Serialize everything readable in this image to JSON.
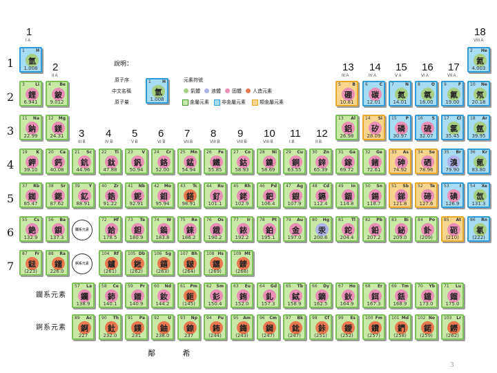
{
  "groups": [
    {
      "num": "1",
      "roman": "I A",
      "col": 1
    },
    {
      "num": "2",
      "roman": "II A",
      "col": 2
    },
    {
      "num": "3",
      "roman": "III B",
      "col": 3
    },
    {
      "num": "4",
      "roman": "IV B",
      "col": 4
    },
    {
      "num": "5",
      "roman": "V B",
      "col": 5
    },
    {
      "num": "6",
      "roman": "VI B",
      "col": 6
    },
    {
      "num": "7",
      "roman": "VII B",
      "col": 7
    },
    {
      "num": "8",
      "roman": "VIII B",
      "col": 8
    },
    {
      "num": "9",
      "roman": "VIII B",
      "col": 9
    },
    {
      "num": "10",
      "roman": "VIII B",
      "col": 10
    },
    {
      "num": "11",
      "roman": "I B",
      "col": 11
    },
    {
      "num": "12",
      "roman": "II B",
      "col": 12
    },
    {
      "num": "13",
      "roman": "III A",
      "col": 13
    },
    {
      "num": "14",
      "roman": "IV A",
      "col": 14
    },
    {
      "num": "15",
      "roman": "V A",
      "col": 15
    },
    {
      "num": "16",
      "roman": "VI A",
      "col": 16
    },
    {
      "num": "17",
      "roman": "VII A",
      "col": 17
    },
    {
      "num": "18",
      "roman": "VIII A",
      "col": 18
    }
  ],
  "periods": [
    "1",
    "2",
    "3",
    "4",
    "5",
    "6",
    "7"
  ],
  "legend": {
    "title": "說明：",
    "atomic_number": "原子序",
    "chinese_name": "中文名稱",
    "atomic_mass": "原子量",
    "symbol": "元素符號",
    "sample": {
      "num": "1",
      "sym": "H",
      "char": "氫",
      "mass": "1.008"
    },
    "states": [
      "氣體",
      "液體",
      "固體",
      "人造元素"
    ],
    "kinds": [
      "金屬元素",
      "非金屬元素",
      "類金屬元素"
    ]
  },
  "series_labels": {
    "lanthanides": "鑭系元素",
    "actinides": "錒系元素"
  },
  "placeholders": {
    "lanthanides": "鑭系元素",
    "actinides": "錒系元素"
  },
  "footer": "鄰 希",
  "page_number": "3",
  "elements": [
    {
      "n": "1",
      "s": "H",
      "c": "氫",
      "m": "1.008",
      "col": 1,
      "row": 1,
      "t": "nonmetal",
      "st": "gas"
    },
    {
      "n": "2",
      "s": "He",
      "c": "氦",
      "m": "4.003",
      "col": 18,
      "row": 1,
      "t": "nonmetal",
      "st": "gas"
    },
    {
      "n": "3",
      "s": "Li",
      "c": "鋰",
      "m": "6.941",
      "col": 1,
      "row": 2,
      "t": "metal",
      "st": "solid"
    },
    {
      "n": "4",
      "s": "Be",
      "c": "鈹",
      "m": "9.012",
      "col": 2,
      "row": 2,
      "t": "metal",
      "st": "solid"
    },
    {
      "n": "5",
      "s": "B",
      "c": "硼",
      "m": "10.81",
      "col": 13,
      "row": 2,
      "t": "metalloid",
      "st": "solid"
    },
    {
      "n": "6",
      "s": "C",
      "c": "碳",
      "m": "12.01",
      "col": 14,
      "row": 2,
      "t": "nonmetal",
      "st": "solid"
    },
    {
      "n": "7",
      "s": "N",
      "c": "氮",
      "m": "14.01",
      "col": 15,
      "row": 2,
      "t": "nonmetal",
      "st": "gas"
    },
    {
      "n": "8",
      "s": "O",
      "c": "氧",
      "m": "16.00",
      "col": 16,
      "row": 2,
      "t": "nonmetal",
      "st": "gas"
    },
    {
      "n": "9",
      "s": "F",
      "c": "氟",
      "m": "19.00",
      "col": 17,
      "row": 2,
      "t": "nonmetal",
      "st": "gas"
    },
    {
      "n": "10",
      "s": "Ne",
      "c": "氖",
      "m": "20.18",
      "col": 18,
      "row": 2,
      "t": "nonmetal",
      "st": "gas"
    },
    {
      "n": "11",
      "s": "Na",
      "c": "鈉",
      "m": "22.99",
      "col": 1,
      "row": 3,
      "t": "metal",
      "st": "solid"
    },
    {
      "n": "12",
      "s": "Mg",
      "c": "鎂",
      "m": "24.31",
      "col": 2,
      "row": 3,
      "t": "metal",
      "st": "solid"
    },
    {
      "n": "13",
      "s": "Al",
      "c": "鋁",
      "m": "26.98",
      "col": 13,
      "row": 3,
      "t": "metal",
      "st": "solid"
    },
    {
      "n": "14",
      "s": "Si",
      "c": "矽",
      "m": "28.09",
      "col": 14,
      "row": 3,
      "t": "metalloid",
      "st": "solid"
    },
    {
      "n": "15",
      "s": "P",
      "c": "磷",
      "m": "30.97",
      "col": 15,
      "row": 3,
      "t": "nonmetal",
      "st": "solid"
    },
    {
      "n": "16",
      "s": "S",
      "c": "硫",
      "m": "32.07",
      "col": 16,
      "row": 3,
      "t": "nonmetal",
      "st": "solid"
    },
    {
      "n": "17",
      "s": "Cl",
      "c": "氯",
      "m": "35.45",
      "col": 17,
      "row": 3,
      "t": "nonmetal",
      "st": "gas"
    },
    {
      "n": "18",
      "s": "Ar",
      "c": "氬",
      "m": "39.95",
      "col": 18,
      "row": 3,
      "t": "nonmetal",
      "st": "gas"
    },
    {
      "n": "19",
      "s": "K",
      "c": "鉀",
      "m": "39.10",
      "col": 1,
      "row": 4,
      "t": "metal",
      "st": "solid"
    },
    {
      "n": "20",
      "s": "Ca",
      "c": "鈣",
      "m": "40.08",
      "col": 2,
      "row": 4,
      "t": "metal",
      "st": "solid"
    },
    {
      "n": "21",
      "s": "Sc",
      "c": "鈧",
      "m": "44.96",
      "col": 3,
      "row": 4,
      "t": "metal",
      "st": "solid"
    },
    {
      "n": "22",
      "s": "Ti",
      "c": "鈦",
      "m": "47.88",
      "col": 4,
      "row": 4,
      "t": "metal",
      "st": "solid"
    },
    {
      "n": "23",
      "s": "V",
      "c": "釩",
      "m": "50.94",
      "col": 5,
      "row": 4,
      "t": "metal",
      "st": "solid"
    },
    {
      "n": "24",
      "s": "Cr",
      "c": "鉻",
      "m": "52.00",
      "col": 6,
      "row": 4,
      "t": "metal",
      "st": "solid"
    },
    {
      "n": "25",
      "s": "Mn",
      "c": "錳",
      "m": "54.94",
      "col": 7,
      "row": 4,
      "t": "metal",
      "st": "solid"
    },
    {
      "n": "26",
      "s": "Fe",
      "c": "鐵",
      "m": "55.85",
      "col": 8,
      "row": 4,
      "t": "metal",
      "st": "solid"
    },
    {
      "n": "27",
      "s": "Co",
      "c": "鈷",
      "m": "58.93",
      "col": 9,
      "row": 4,
      "t": "metal",
      "st": "solid"
    },
    {
      "n": "28",
      "s": "Ni",
      "c": "鎳",
      "m": "58.69",
      "col": 10,
      "row": 4,
      "t": "metal",
      "st": "solid"
    },
    {
      "n": "29",
      "s": "Cu",
      "c": "銅",
      "m": "63.55",
      "col": 11,
      "row": 4,
      "t": "metal",
      "st": "solid"
    },
    {
      "n": "30",
      "s": "Zn",
      "c": "鋅",
      "m": "65.39",
      "col": 12,
      "row": 4,
      "t": "metal",
      "st": "solid"
    },
    {
      "n": "31",
      "s": "Ga",
      "c": "鎵",
      "m": "69.72",
      "col": 13,
      "row": 4,
      "t": "metal",
      "st": "solid"
    },
    {
      "n": "32",
      "s": "Ge",
      "c": "鍺",
      "m": "72.61",
      "col": 14,
      "row": 4,
      "t": "metal",
      "st": "solid"
    },
    {
      "n": "33",
      "s": "As",
      "c": "砷",
      "m": "74.92",
      "col": 15,
      "row": 4,
      "t": "metalloid",
      "st": "solid"
    },
    {
      "n": "34",
      "s": "Se",
      "c": "硒",
      "m": "78.96",
      "col": 16,
      "row": 4,
      "t": "metalloid",
      "st": "solid"
    },
    {
      "n": "35",
      "s": "Br",
      "c": "溴",
      "m": "79.90",
      "col": 17,
      "row": 4,
      "t": "nonmetal",
      "st": "liquid"
    },
    {
      "n": "36",
      "s": "Kr",
      "c": "氪",
      "m": "83.80",
      "col": 18,
      "row": 4,
      "t": "nonmetal",
      "st": "gas"
    },
    {
      "n": "37",
      "s": "Rb",
      "c": "銣",
      "m": "85.47",
      "col": 1,
      "row": 5,
      "t": "metal",
      "st": "solid"
    },
    {
      "n": "38",
      "s": "Sr",
      "c": "鍶",
      "m": "87.62",
      "col": 2,
      "row": 5,
      "t": "metal",
      "st": "solid"
    },
    {
      "n": "39",
      "s": "Y",
      "c": "釔",
      "m": "88.91",
      "col": 3,
      "row": 5,
      "t": "metal",
      "st": "solid"
    },
    {
      "n": "40",
      "s": "Zr",
      "c": "鋯",
      "m": "91.22",
      "col": 4,
      "row": 5,
      "t": "metal",
      "st": "solid"
    },
    {
      "n": "41",
      "s": "Nb",
      "c": "鈮",
      "m": "92.91",
      "col": 5,
      "row": 5,
      "t": "metal",
      "st": "solid"
    },
    {
      "n": "42",
      "s": "Mo",
      "c": "鉬",
      "m": "95.94",
      "col": 6,
      "row": 5,
      "t": "metal",
      "st": "solid"
    },
    {
      "n": "43",
      "s": "Tc",
      "c": "鎝",
      "m": "98.91",
      "col": 7,
      "row": 5,
      "t": "metal",
      "st": "synth"
    },
    {
      "n": "44",
      "s": "Ru",
      "c": "釕",
      "m": "101.1",
      "col": 8,
      "row": 5,
      "t": "metal",
      "st": "solid"
    },
    {
      "n": "45",
      "s": "Rh",
      "c": "銠",
      "m": "102.9",
      "col": 9,
      "row": 5,
      "t": "metal",
      "st": "solid"
    },
    {
      "n": "46",
      "s": "Pd",
      "c": "鈀",
      "m": "106.4",
      "col": 10,
      "row": 5,
      "t": "metal",
      "st": "solid"
    },
    {
      "n": "47",
      "s": "Ag",
      "c": "銀",
      "m": "107.9",
      "col": 11,
      "row": 5,
      "t": "metal",
      "st": "solid"
    },
    {
      "n": "48",
      "s": "Cd",
      "c": "鎘",
      "m": "112.4",
      "col": 12,
      "row": 5,
      "t": "metal",
      "st": "solid"
    },
    {
      "n": "49",
      "s": "In",
      "c": "銦",
      "m": "114.8",
      "col": 13,
      "row": 5,
      "t": "metal",
      "st": "solid"
    },
    {
      "n": "50",
      "s": "Sn",
      "c": "錫",
      "m": "118.7",
      "col": 14,
      "row": 5,
      "t": "metal",
      "st": "solid"
    },
    {
      "n": "51",
      "s": "Sb",
      "c": "銻",
      "m": "121.8",
      "col": 15,
      "row": 5,
      "t": "metalloid",
      "st": "solid"
    },
    {
      "n": "52",
      "s": "Te",
      "c": "碲",
      "m": "127.6",
      "col": 16,
      "row": 5,
      "t": "metalloid",
      "st": "solid"
    },
    {
      "n": "53",
      "s": "I",
      "c": "碘",
      "m": "126.9",
      "col": 17,
      "row": 5,
      "t": "nonmetal",
      "st": "solid"
    },
    {
      "n": "54",
      "s": "Xe",
      "c": "氙",
      "m": "131.3",
      "col": 18,
      "row": 5,
      "t": "nonmetal",
      "st": "gas"
    },
    {
      "n": "55",
      "s": "Cs",
      "c": "銫",
      "m": "132.9",
      "col": 1,
      "row": 6,
      "t": "metal",
      "st": "solid"
    },
    {
      "n": "56",
      "s": "Ba",
      "c": "鋇",
      "m": "137.3",
      "col": 2,
      "row": 6,
      "t": "metal",
      "st": "solid"
    },
    {
      "n": "72",
      "s": "Hf",
      "c": "鉿",
      "m": "178.5",
      "col": 4,
      "row": 6,
      "t": "metal",
      "st": "solid"
    },
    {
      "n": "73",
      "s": "Ta",
      "c": "鉭",
      "m": "180.9",
      "col": 5,
      "row": 6,
      "t": "metal",
      "st": "solid"
    },
    {
      "n": "74",
      "s": "W",
      "c": "鎢",
      "m": "183.8",
      "col": 6,
      "row": 6,
      "t": "metal",
      "st": "solid"
    },
    {
      "n": "75",
      "s": "Re",
      "c": "錸",
      "m": "186.2",
      "col": 7,
      "row": 6,
      "t": "metal",
      "st": "solid"
    },
    {
      "n": "76",
      "s": "Os",
      "c": "鋨",
      "m": "190.2",
      "col": 8,
      "row": 6,
      "t": "metal",
      "st": "solid"
    },
    {
      "n": "77",
      "s": "Ir",
      "c": "銥",
      "m": "192.2",
      "col": 9,
      "row": 6,
      "t": "metal",
      "st": "solid"
    },
    {
      "n": "78",
      "s": "Pt",
      "c": "鉑",
      "m": "195.1",
      "col": 10,
      "row": 6,
      "t": "metal",
      "st": "solid"
    },
    {
      "n": "79",
      "s": "Au",
      "c": "金",
      "m": "197.0",
      "col": 11,
      "row": 6,
      "t": "metal",
      "st": "solid"
    },
    {
      "n": "80",
      "s": "Hg",
      "c": "汞",
      "m": "200.6",
      "col": 12,
      "row": 6,
      "t": "metal",
      "st": "liquid"
    },
    {
      "n": "81",
      "s": "Tl",
      "c": "鉈",
      "m": "204.4",
      "col": 13,
      "row": 6,
      "t": "metal",
      "st": "solid"
    },
    {
      "n": "82",
      "s": "Pb",
      "c": "鉛",
      "m": "207.2",
      "col": 14,
      "row": 6,
      "t": "metal",
      "st": "solid"
    },
    {
      "n": "83",
      "s": "Bi",
      "c": "鉍",
      "m": "209.0",
      "col": 15,
      "row": 6,
      "t": "metal",
      "st": "solid"
    },
    {
      "n": "84",
      "s": "Po",
      "c": "釙",
      "m": "(209)",
      "col": 16,
      "row": 6,
      "t": "metal",
      "st": "solid"
    },
    {
      "n": "85",
      "s": "At",
      "c": "砈",
      "m": "(210)",
      "col": 17,
      "row": 6,
      "t": "metalloid",
      "st": "solid"
    },
    {
      "n": "86",
      "s": "Rn",
      "c": "氡",
      "m": "(222)",
      "col": 18,
      "row": 6,
      "t": "nonmetal",
      "st": "gas"
    },
    {
      "n": "87",
      "s": "Fr",
      "c": "鍅",
      "m": "(223)",
      "col": 1,
      "row": 7,
      "t": "metal",
      "st": "synth"
    },
    {
      "n": "88",
      "s": "Ra",
      "c": "鐳",
      "m": "226.0",
      "col": 2,
      "row": 7,
      "t": "metal",
      "st": "synth"
    },
    {
      "n": "104",
      "s": "Rf",
      "c": "鑪",
      "m": "(261)",
      "col": 4,
      "row": 7,
      "t": "metal",
      "st": "synth"
    },
    {
      "n": "105",
      "s": "Db",
      "c": "𨧀",
      "m": "(262)",
      "col": 5,
      "row": 7,
      "t": "metal",
      "st": "synth"
    },
    {
      "n": "106",
      "s": "Sg",
      "c": "𨭎",
      "m": "(263)",
      "col": 6,
      "row": 7,
      "t": "metal",
      "st": "synth"
    },
    {
      "n": "107",
      "s": "Bh",
      "c": "𨨏",
      "m": "(264)",
      "col": 7,
      "row": 7,
      "t": "metal",
      "st": "synth"
    },
    {
      "n": "108",
      "s": "Hs",
      "c": "𨭆",
      "m": "(269)",
      "col": 8,
      "row": 7,
      "t": "metal",
      "st": "synth"
    },
    {
      "n": "109",
      "s": "Mt",
      "c": "䥑",
      "m": "(268)",
      "col": 9,
      "row": 7,
      "t": "metal",
      "st": "synth"
    },
    {
      "n": "57",
      "s": "La",
      "c": "鑭",
      "m": "138.9",
      "col": 3,
      "row": 8,
      "t": "metal",
      "st": "solid"
    },
    {
      "n": "58",
      "s": "Ce",
      "c": "鈰",
      "m": "140.1",
      "col": 4,
      "row": 8,
      "t": "metal",
      "st": "solid"
    },
    {
      "n": "59",
      "s": "Pr",
      "c": "鐠",
      "m": "140.9",
      "col": 5,
      "row": 8,
      "t": "metal",
      "st": "solid"
    },
    {
      "n": "60",
      "s": "Nd",
      "c": "釹",
      "m": "144.2",
      "col": 6,
      "row": 8,
      "t": "metal",
      "st": "solid"
    },
    {
      "n": "61",
      "s": "Pm",
      "c": "鉕",
      "m": "(145)",
      "col": 7,
      "row": 8,
      "t": "metal",
      "st": "synth"
    },
    {
      "n": "62",
      "s": "Sm",
      "c": "釤",
      "m": "150.4",
      "col": 8,
      "row": 8,
      "t": "metal",
      "st": "solid"
    },
    {
      "n": "63",
      "s": "Eu",
      "c": "銪",
      "m": "152.0",
      "col": 9,
      "row": 8,
      "t": "metal",
      "st": "solid"
    },
    {
      "n": "64",
      "s": "Gd",
      "c": "釓",
      "m": "157.3",
      "col": 10,
      "row": 8,
      "t": "metal",
      "st": "solid"
    },
    {
      "n": "65",
      "s": "Tb",
      "c": "鋱",
      "m": "158.9",
      "col": 11,
      "row": 8,
      "t": "metal",
      "st": "solid"
    },
    {
      "n": "66",
      "s": "Dy",
      "c": "鏑",
      "m": "162.5",
      "col": 12,
      "row": 8,
      "t": "metal",
      "st": "solid"
    },
    {
      "n": "67",
      "s": "Ho",
      "c": "鈥",
      "m": "164.9",
      "col": 13,
      "row": 8,
      "t": "metal",
      "st": "solid"
    },
    {
      "n": "68",
      "s": "Er",
      "c": "鉺",
      "m": "167.3",
      "col": 14,
      "row": 8,
      "t": "metal",
      "st": "solid"
    },
    {
      "n": "69",
      "s": "Tm",
      "c": "銩",
      "m": "168.9",
      "col": 15,
      "row": 8,
      "t": "metal",
      "st": "solid"
    },
    {
      "n": "70",
      "s": "Yb",
      "c": "鐿",
      "m": "173.0",
      "col": 16,
      "row": 8,
      "t": "metal",
      "st": "solid"
    },
    {
      "n": "71",
      "s": "Lu",
      "c": "鎦",
      "m": "175.0",
      "col": 17,
      "row": 8,
      "t": "metal",
      "st": "solid"
    },
    {
      "n": "89",
      "s": "Ac",
      "c": "錒",
      "m": "227",
      "col": 3,
      "row": 9,
      "t": "metal",
      "st": "synth"
    },
    {
      "n": "90",
      "s": "Th",
      "c": "釷",
      "m": "232.0",
      "col": 4,
      "row": 9,
      "t": "metal",
      "st": "synth"
    },
    {
      "n": "91",
      "s": "Pa",
      "c": "鏷",
      "m": "231",
      "col": 5,
      "row": 9,
      "t": "metal",
      "st": "synth"
    },
    {
      "n": "92",
      "s": "U",
      "c": "鈾",
      "m": "238.0",
      "col": 6,
      "row": 9,
      "t": "metal",
      "st": "synth"
    },
    {
      "n": "93",
      "s": "Np",
      "c": "錼",
      "m": "237",
      "col": 7,
      "row": 9,
      "t": "metal",
      "st": "synth"
    },
    {
      "n": "94",
      "s": "Pu",
      "c": "鈽",
      "m": "(244)",
      "col": 8,
      "row": 9,
      "t": "metal",
      "st": "synth"
    },
    {
      "n": "95",
      "s": "Am",
      "c": "鋂",
      "m": "(243)",
      "col": 9,
      "row": 9,
      "t": "metal",
      "st": "synth"
    },
    {
      "n": "96",
      "s": "Cm",
      "c": "鋦",
      "m": "(247)",
      "col": 10,
      "row": 9,
      "t": "metal",
      "st": "synth"
    },
    {
      "n": "97",
      "s": "Bk",
      "c": "鉳",
      "m": "(247)",
      "col": 11,
      "row": 9,
      "t": "metal",
      "st": "synth"
    },
    {
      "n": "98",
      "s": "Cf",
      "c": "鉲",
      "m": "(251)",
      "col": 12,
      "row": 9,
      "t": "metal",
      "st": "synth"
    },
    {
      "n": "99",
      "s": "Es",
      "c": "鑀",
      "m": "(252)",
      "col": 13,
      "row": 9,
      "t": "metal",
      "st": "synth"
    },
    {
      "n": "100",
      "s": "Fm",
      "c": "鐨",
      "m": "(257)",
      "col": 14,
      "row": 9,
      "t": "metal",
      "st": "synth"
    },
    {
      "n": "101",
      "s": "Md",
      "c": "鍆",
      "m": "(258)",
      "col": 15,
      "row": 9,
      "t": "metal",
      "st": "synth"
    },
    {
      "n": "102",
      "s": "No",
      "c": "鍩",
      "m": "(259)",
      "col": 16,
      "row": 9,
      "t": "metal",
      "st": "synth"
    },
    {
      "n": "103",
      "s": "Lr",
      "c": "鐒",
      "m": "(262)",
      "col": 17,
      "row": 9,
      "t": "metal",
      "st": "synth"
    }
  ]
}
